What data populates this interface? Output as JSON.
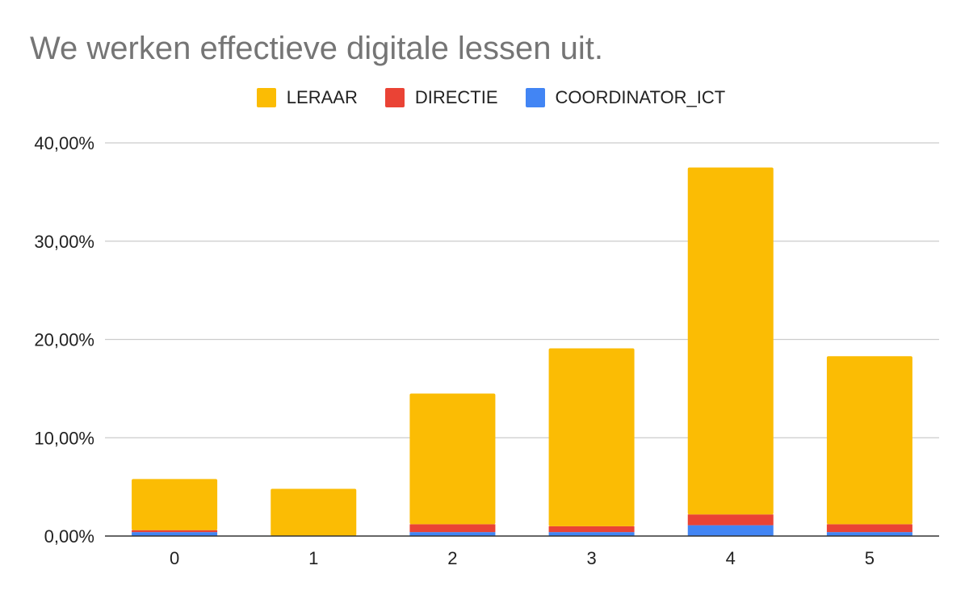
{
  "chart_data": {
    "type": "bar",
    "stacked": true,
    "title": "We werken effectieve digitale lessen uit.",
    "xlabel": "",
    "ylabel": "",
    "categories": [
      "0",
      "1",
      "2",
      "3",
      "4",
      "5"
    ],
    "series": [
      {
        "name": "COORDINATOR_ICT",
        "color": "#4285f4",
        "values": [
          0.4,
          0.0,
          0.4,
          0.4,
          1.1,
          0.4
        ]
      },
      {
        "name": "DIRECTIE",
        "color": "#ea4335",
        "values": [
          0.2,
          0.0,
          0.8,
          0.6,
          1.1,
          0.8
        ]
      },
      {
        "name": "LERAAR",
        "color": "#fbbc04",
        "values": [
          5.2,
          4.8,
          13.3,
          18.1,
          35.3,
          17.1
        ]
      }
    ],
    "legend_order": [
      "LERAAR",
      "DIRECTIE",
      "COORDINATOR_ICT"
    ],
    "yticks": [
      0,
      10,
      20,
      30,
      40
    ],
    "ytick_labels": [
      "0,00%",
      "10,00%",
      "20,00%",
      "30,00%",
      "40,00%"
    ],
    "ylim": [
      0,
      40
    ],
    "grid": true,
    "legend_position": "top"
  }
}
